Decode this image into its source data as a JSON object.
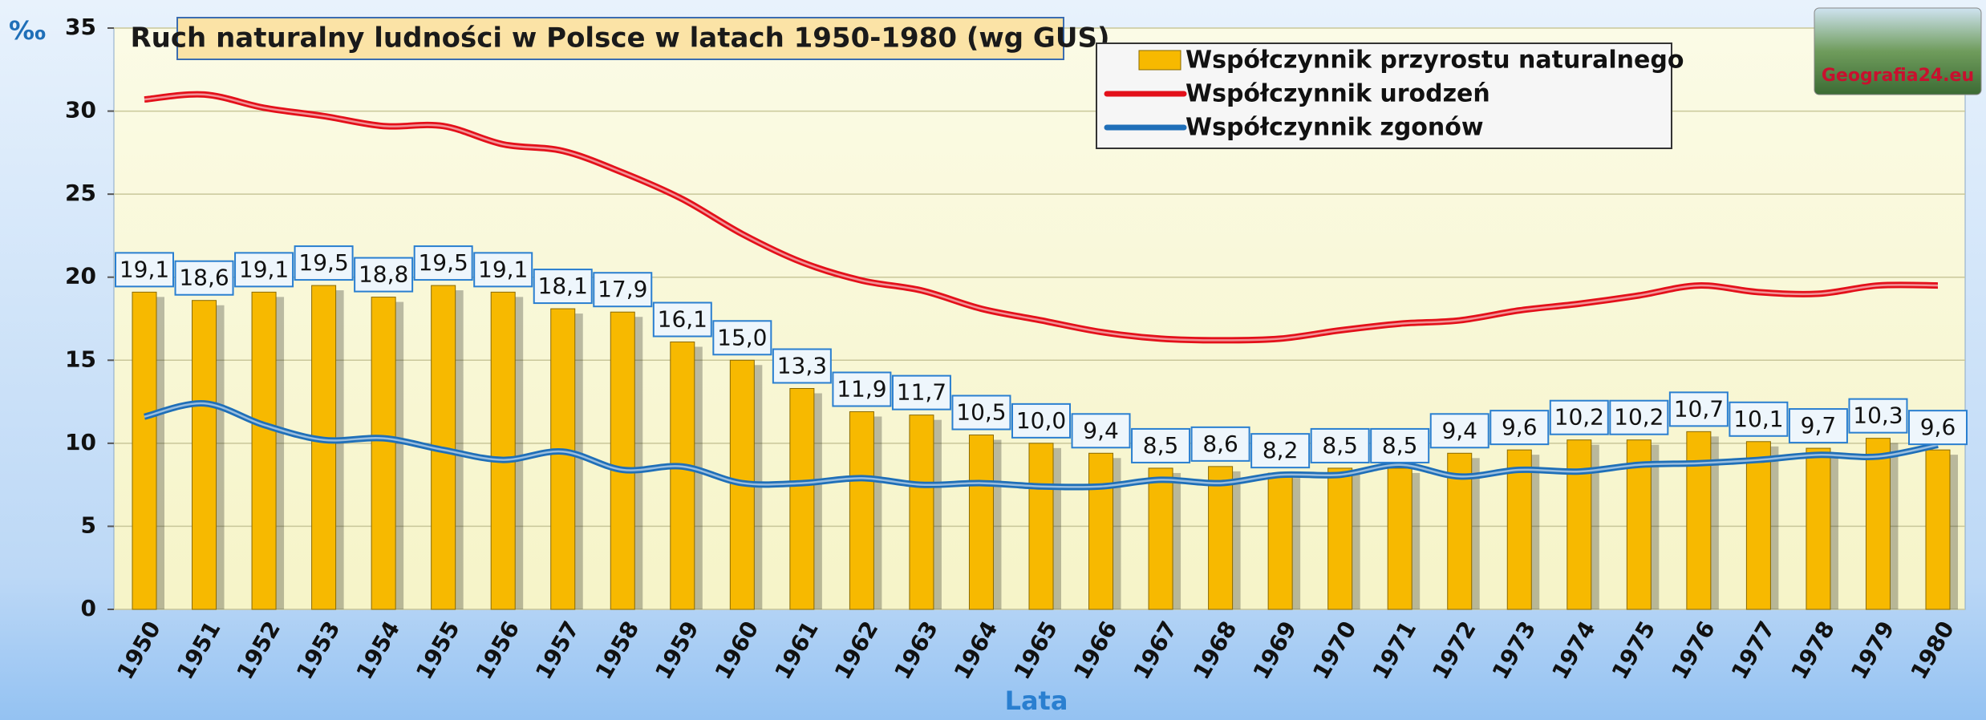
{
  "chart_data": {
    "type": "bar",
    "title": "Ruch naturalny ludności w Polsce w latach 1950-1980 (wg GUS)",
    "y_label": "‰",
    "x_label": "Lata",
    "logo": "Geografia24.eu",
    "categories": [
      "1950",
      "1951",
      "1952",
      "1953",
      "1954",
      "1955",
      "1956",
      "1957",
      "1958",
      "1959",
      "1960",
      "1961",
      "1962",
      "1963",
      "1964",
      "1965",
      "1966",
      "1967",
      "1968",
      "1969",
      "1970",
      "1971",
      "1972",
      "1973",
      "1974",
      "1975",
      "1976",
      "1977",
      "1978",
      "1979",
      "1980"
    ],
    "series": [
      {
        "name": "Współczynnik przyrostu naturalnego",
        "type": "bar",
        "color": "#f7b900",
        "values": [
          19.1,
          18.6,
          19.1,
          19.5,
          18.8,
          19.5,
          19.1,
          18.1,
          17.9,
          16.1,
          15.0,
          13.3,
          11.9,
          11.7,
          10.5,
          10.0,
          9.4,
          8.5,
          8.6,
          8.2,
          8.5,
          8.5,
          9.4,
          9.6,
          10.2,
          10.2,
          10.7,
          10.1,
          9.7,
          10.3,
          9.6
        ],
        "value_labels": [
          "19,1",
          "18,6",
          "19,1",
          "19,5",
          "18,8",
          "19,5",
          "19,1",
          "18,1",
          "17,9",
          "16,1",
          "15,0",
          "13,3",
          "11,9",
          "11,7",
          "10,5",
          "10,0",
          "9,4",
          "8,5",
          "8,6",
          "8,2",
          "8,5",
          "8,5",
          "9,4",
          "9,6",
          "10,2",
          "10,2",
          "10,7",
          "10,1",
          "9,7",
          "10,3",
          "9,6"
        ]
      },
      {
        "name": "Współczynnik urodzeń",
        "type": "line",
        "color": "#e3101a",
        "values": [
          30.7,
          31.0,
          30.2,
          29.7,
          29.1,
          29.1,
          28.0,
          27.6,
          26.3,
          24.7,
          22.6,
          20.9,
          19.8,
          19.2,
          18.1,
          17.4,
          16.7,
          16.3,
          16.2,
          16.3,
          16.8,
          17.2,
          17.4,
          18.0,
          18.4,
          18.9,
          19.5,
          19.1,
          19.0,
          19.5,
          19.5
        ]
      },
      {
        "name": "Współczynnik zgonów",
        "type": "line",
        "color": "#1f6fb8",
        "values": [
          11.6,
          12.4,
          11.1,
          10.2,
          10.3,
          9.6,
          9.0,
          9.5,
          8.4,
          8.6,
          7.6,
          7.6,
          7.9,
          7.5,
          7.6,
          7.4,
          7.4,
          7.8,
          7.6,
          8.1,
          8.1,
          8.7,
          8.0,
          8.4,
          8.3,
          8.7,
          8.8,
          9.0,
          9.3,
          9.2,
          9.9
        ]
      }
    ],
    "ylim": [
      0,
      35
    ],
    "yticks": [
      0,
      5,
      10,
      15,
      20,
      25,
      30,
      35
    ],
    "grid": true,
    "legend": "top-right"
  }
}
